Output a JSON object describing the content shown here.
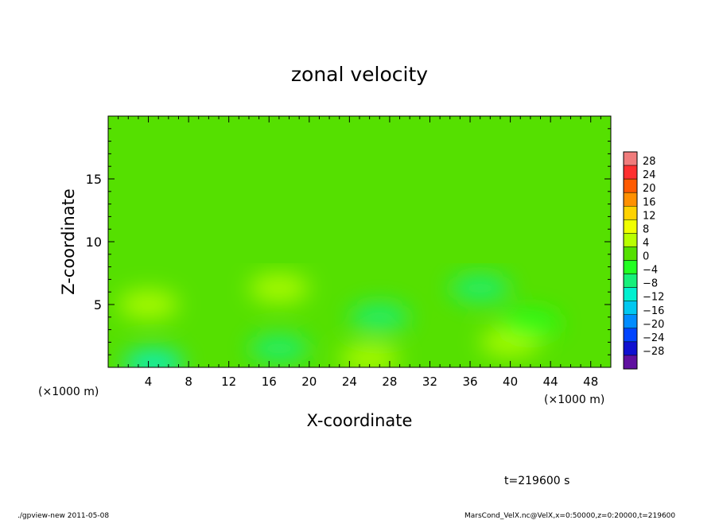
{
  "chart_data": {
    "type": "heatmap",
    "title": "zonal velocity",
    "xlabel": "X-coordinate",
    "ylabel": "Z-coordinate",
    "x_unit_label": "(×1000 m)",
    "y_unit_label": "(×1000 m)",
    "xlim": [
      0,
      50
    ],
    "ylim": [
      0,
      20
    ],
    "x_ticks": [
      "4",
      "8",
      "12",
      "16",
      "20",
      "24",
      "28",
      "32",
      "36",
      "40",
      "44",
      "48"
    ],
    "y_ticks": [
      "5",
      "10",
      "15"
    ],
    "colorbar": {
      "labels": [
        "28",
        "24",
        "20",
        "16",
        "12",
        "8",
        "4",
        "0",
        "−4",
        "−8",
        "−12",
        "−16",
        "−20",
        "−24",
        "−28"
      ],
      "colors": [
        "#f07c7c",
        "#ff3030",
        "#ff5a00",
        "#ff9000",
        "#ffd200",
        "#f0ff00",
        "#b8ff00",
        "#55e000",
        "#22ff22",
        "#16f07a",
        "#00f0d0",
        "#00c8f0",
        "#008cff",
        "#0044ff",
        "#1010d0",
        "#6010a0"
      ]
    },
    "field_summary": {
      "background_value": 0,
      "features": [
        {
          "x": 17,
          "z": 6.3,
          "value": 5
        },
        {
          "x": 4,
          "z": 5,
          "value": 3
        },
        {
          "x": 40,
          "z": 2,
          "value": 4
        },
        {
          "x": 26,
          "z": 0.7,
          "value": 3
        },
        {
          "x": 37,
          "z": 6.3,
          "value": -9
        },
        {
          "x": 17,
          "z": 1.5,
          "value": -6
        },
        {
          "x": 27,
          "z": 4,
          "value": -6
        },
        {
          "x": 4.5,
          "z": 0.3,
          "value": -10
        },
        {
          "x": 42,
          "z": 3.5,
          "value": -5
        }
      ]
    }
  },
  "annotations": {
    "time": "t=219600 s",
    "footer_left": "./gpview-new  2011-05-08",
    "footer_right": "MarsCond_VelX.nc@VelX,x=0:50000,z=0:20000,t=219600"
  }
}
